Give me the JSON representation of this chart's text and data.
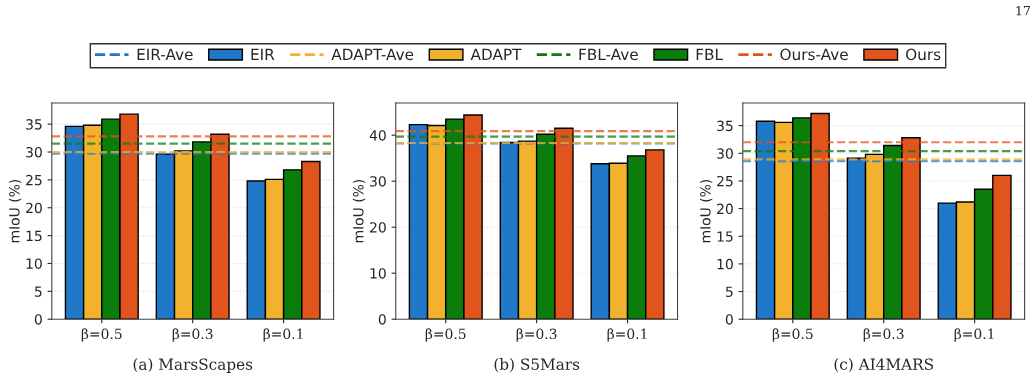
{
  "chart_data": [
    {
      "type": "bar",
      "title": "(a) MarsScapes",
      "ylabel": "mIoU (%)",
      "categories": [
        "β=0.5",
        "β=0.3",
        "β=0.1"
      ],
      "series": [
        {
          "name": "EIR",
          "color": "#1f78c8",
          "values": [
            34.6,
            29.6,
            24.8
          ]
        },
        {
          "name": "ADAPT",
          "color": "#f2b22e",
          "values": [
            34.8,
            30.2,
            25.1
          ]
        },
        {
          "name": "FBL",
          "color": "#0b7d0b",
          "values": [
            35.9,
            31.8,
            26.8
          ]
        },
        {
          "name": "Ours",
          "color": "#e2541e",
          "values": [
            36.8,
            33.2,
            28.3
          ]
        }
      ],
      "ref_lines": [
        {
          "axis": "y",
          "value": 29.7,
          "label": "EIR-Ave",
          "color": "#1f78c8",
          "line_style": "dashed"
        },
        {
          "axis": "y",
          "value": 30.0,
          "label": "ADAPT-Ave",
          "color": "#f2b22e",
          "line_style": "dashed"
        },
        {
          "axis": "y",
          "value": 31.5,
          "label": "FBL-Ave",
          "color": "#0b7d0b",
          "line_style": "dashed"
        },
        {
          "axis": "y",
          "value": 32.8,
          "label": "Ours-Ave",
          "color": "#e2541e",
          "line_style": "dashed"
        }
      ],
      "ylim": [
        0,
        38.8
      ],
      "yticks": [
        0,
        5,
        10,
        15,
        20,
        25,
        30,
        35
      ],
      "grid": "y",
      "legend": "top",
      "annotations": [
        "17"
      ]
    },
    {
      "type": "bar",
      "title": "(b) S5Mars",
      "ylabel": "mIoU (%)",
      "categories": [
        "β=0.5",
        "β=0.3",
        "β=0.1"
      ],
      "series": [
        {
          "color": "#1f78c8",
          "values": [
            42.3,
            38.4,
            33.8
          ]
        },
        {
          "color": "#f2b22e",
          "values": [
            42.1,
            38.7,
            33.9
          ]
        },
        {
          "color": "#0b7d0b",
          "values": [
            43.5,
            40.2,
            35.5
          ]
        },
        {
          "color": "#e2541e",
          "values": [
            44.4,
            41.5,
            36.8
          ]
        }
      ],
      "ref_lines": [
        {
          "axis": "y",
          "value": 38.2,
          "color": "#1f78c8",
          "line_style": "dashed"
        },
        {
          "axis": "y",
          "value": 38.3,
          "color": "#f2b22e",
          "line_style": "dashed"
        },
        {
          "axis": "y",
          "value": 39.7,
          "color": "#0b7d0b",
          "line_style": "dashed"
        },
        {
          "axis": "y",
          "value": 40.9,
          "color": "#e2541e",
          "line_style": "dashed"
        }
      ],
      "ylim": [
        0,
        47
      ],
      "yticks": [
        0,
        10,
        20,
        30,
        40
      ],
      "grid": "y"
    },
    {
      "type": "bar",
      "title": "(c) AI4MARS",
      "ylabel": "mIoU (%)",
      "categories": [
        "β=0.5",
        "β=0.3",
        "β=0.1"
      ],
      "series": [
        {
          "color": "#1f78c8",
          "values": [
            35.8,
            29.1,
            21.0
          ]
        },
        {
          "color": "#f2b22e",
          "values": [
            35.6,
            29.8,
            21.2
          ]
        },
        {
          "color": "#0b7d0b",
          "values": [
            36.4,
            31.4,
            23.5
          ]
        },
        {
          "color": "#e2541e",
          "values": [
            37.2,
            32.8,
            26.0
          ]
        }
      ],
      "ref_lines": [
        {
          "axis": "y",
          "value": 28.6,
          "color": "#1f78c8",
          "line_style": "dashed"
        },
        {
          "axis": "y",
          "value": 28.9,
          "color": "#f2b22e",
          "line_style": "dashed"
        },
        {
          "axis": "y",
          "value": 30.4,
          "color": "#0b7d0b",
          "line_style": "dashed"
        },
        {
          "axis": "y",
          "value": 32.0,
          "color": "#e2541e",
          "line_style": "dashed"
        }
      ],
      "ylim": [
        0,
        39.1
      ],
      "yticks": [
        0,
        5,
        10,
        15,
        20,
        25,
        30,
        35
      ],
      "grid": "y"
    }
  ]
}
